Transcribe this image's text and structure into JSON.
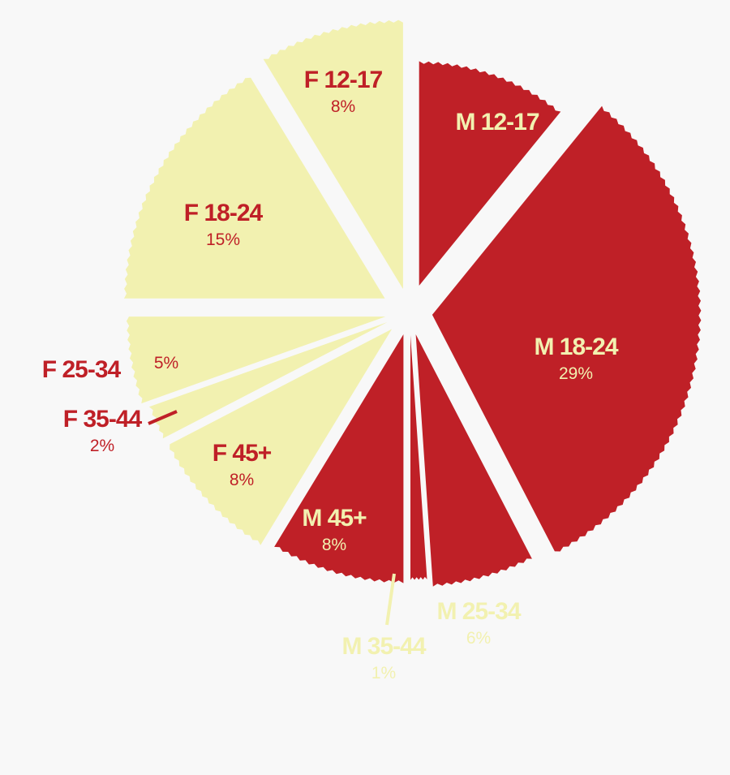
{
  "chart_data": {
    "type": "pie",
    "title": "",
    "colors": {
      "male": "#bf2027",
      "female": "#f2f1b0",
      "background": "#f8f8f8"
    },
    "slices": [
      {
        "group": "male",
        "label": "M 12-17",
        "value": 10,
        "value_label": ""
      },
      {
        "group": "male",
        "label": "M 18-24",
        "value": 29,
        "value_label": "29%"
      },
      {
        "group": "male",
        "label": "M 25-34",
        "value": 6,
        "value_label": "6%"
      },
      {
        "group": "male",
        "label": "M 35-44",
        "value": 1,
        "value_label": "1%"
      },
      {
        "group": "male",
        "label": "M 45+",
        "value": 8,
        "value_label": "8%"
      },
      {
        "group": "female",
        "label": "F 45+",
        "value": 8,
        "value_label": "8%"
      },
      {
        "group": "female",
        "label": "F 35-44",
        "value": 2,
        "value_label": "2%"
      },
      {
        "group": "female",
        "label": "F 25-34",
        "value": 5,
        "value_label": "5%"
      },
      {
        "group": "female",
        "label": "F 18-24",
        "value": 15,
        "value_label": "15%"
      },
      {
        "group": "female",
        "label": "F 12-17",
        "value": 8,
        "value_label": "8%"
      }
    ]
  }
}
